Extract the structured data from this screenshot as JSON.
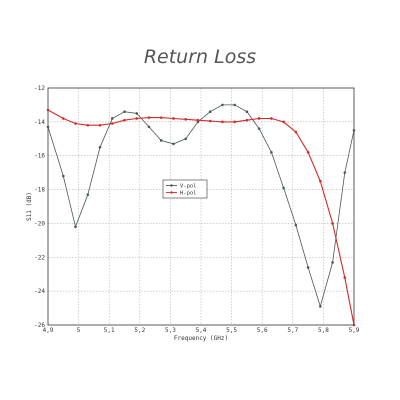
{
  "chart_data": {
    "type": "line",
    "title": "Return Loss",
    "xlabel": "Frequency (GHz)",
    "ylabel": "S11 (dB)",
    "xlim": [
      4.9,
      5.9
    ],
    "ylim": [
      -26,
      -12
    ],
    "xticks": [
      "4,9",
      "5",
      "5,1",
      "5,2",
      "5,3",
      "5,4",
      "5,5",
      "5,6",
      "5,7",
      "5,8",
      "5,9"
    ],
    "yticks": [
      "-12",
      "-14",
      "-16",
      "-18",
      "-20",
      "-22",
      "-24",
      "-26"
    ],
    "grid": true,
    "legend_position": "center-left",
    "series": [
      {
        "name": "V-pol",
        "color": "#4a5a52",
        "x": [
          4.9,
          4.95,
          4.99,
          5.03,
          5.07,
          5.11,
          5.15,
          5.19,
          5.23,
          5.27,
          5.31,
          5.35,
          5.39,
          5.43,
          5.47,
          5.51,
          5.55,
          5.59,
          5.63,
          5.67,
          5.71,
          5.75,
          5.79,
          5.83,
          5.87,
          5.9
        ],
        "y": [
          -14.3,
          -17.2,
          -20.2,
          -18.3,
          -15.5,
          -13.8,
          -13.4,
          -13.5,
          -14.3,
          -15.1,
          -15.3,
          -15.0,
          -14.0,
          -13.4,
          -13.0,
          -13.0,
          -13.4,
          -14.4,
          -15.8,
          -17.9,
          -20.1,
          -22.6,
          -24.9,
          -22.3,
          -17.0,
          -14.5
        ]
      },
      {
        "name": "H-pol",
        "color": "#d42a2a",
        "x": [
          4.9,
          4.95,
          4.99,
          5.03,
          5.07,
          5.11,
          5.15,
          5.19,
          5.23,
          5.27,
          5.31,
          5.35,
          5.39,
          5.43,
          5.47,
          5.51,
          5.55,
          5.59,
          5.63,
          5.67,
          5.71,
          5.75,
          5.79,
          5.83,
          5.87,
          5.9
        ],
        "y": [
          -13.3,
          -13.8,
          -14.1,
          -14.2,
          -14.2,
          -14.1,
          -13.9,
          -13.8,
          -13.75,
          -13.75,
          -13.8,
          -13.85,
          -13.9,
          -13.95,
          -14.0,
          -14.0,
          -13.9,
          -13.8,
          -13.8,
          -14.0,
          -14.6,
          -15.8,
          -17.5,
          -20.0,
          -23.2,
          -26.0
        ]
      }
    ]
  }
}
